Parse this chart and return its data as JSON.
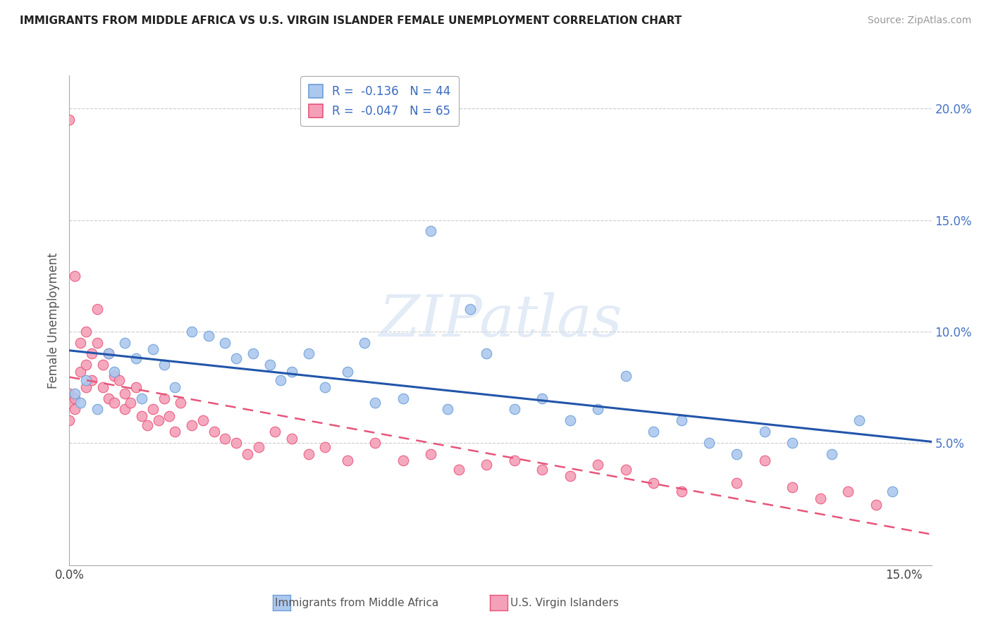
{
  "title": "IMMIGRANTS FROM MIDDLE AFRICA VS U.S. VIRGIN ISLANDER FEMALE UNEMPLOYMENT CORRELATION CHART",
  "source": "Source: ZipAtlas.com",
  "ylabel": "Female Unemployment",
  "xlim": [
    0.0,
    0.155
  ],
  "ylim": [
    -0.005,
    0.215
  ],
  "yticks": [
    0.05,
    0.1,
    0.15,
    0.2
  ],
  "ytick_labels": [
    "5.0%",
    "10.0%",
    "15.0%",
    "20.0%"
  ],
  "blue_label": "Immigrants from Middle Africa",
  "pink_label": "U.S. Virgin Islanders",
  "blue_R": "-0.136",
  "blue_N": "44",
  "pink_R": "-0.047",
  "pink_N": "65",
  "blue_color": "#adc8ee",
  "pink_color": "#f4a0b8",
  "blue_edge_color": "#6a9fd8",
  "pink_edge_color": "#e8547a",
  "blue_line_color": "#2255aa",
  "pink_line_color": "#e8547a",
  "watermark_text": "ZIPatlas",
  "blue_scatter_x": [
    0.001,
    0.002,
    0.003,
    0.005,
    0.007,
    0.008,
    0.01,
    0.012,
    0.013,
    0.015,
    0.017,
    0.019,
    0.022,
    0.025,
    0.028,
    0.03,
    0.033,
    0.036,
    0.038,
    0.04,
    0.043,
    0.046,
    0.05,
    0.053,
    0.055,
    0.06,
    0.065,
    0.068,
    0.072,
    0.075,
    0.08,
    0.085,
    0.09,
    0.095,
    0.1,
    0.105,
    0.11,
    0.115,
    0.12,
    0.125,
    0.13,
    0.137,
    0.142,
    0.148
  ],
  "blue_scatter_y": [
    0.072,
    0.068,
    0.078,
    0.065,
    0.09,
    0.082,
    0.095,
    0.088,
    0.07,
    0.092,
    0.085,
    0.075,
    0.1,
    0.098,
    0.095,
    0.088,
    0.09,
    0.085,
    0.078,
    0.082,
    0.09,
    0.075,
    0.082,
    0.095,
    0.068,
    0.07,
    0.145,
    0.065,
    0.11,
    0.09,
    0.065,
    0.07,
    0.06,
    0.065,
    0.08,
    0.055,
    0.06,
    0.05,
    0.045,
    0.055,
    0.05,
    0.045,
    0.06,
    0.028
  ],
  "pink_scatter_x": [
    0.0,
    0.0,
    0.0,
    0.0,
    0.001,
    0.001,
    0.001,
    0.002,
    0.002,
    0.003,
    0.003,
    0.003,
    0.004,
    0.004,
    0.005,
    0.005,
    0.006,
    0.006,
    0.007,
    0.007,
    0.008,
    0.008,
    0.009,
    0.01,
    0.01,
    0.011,
    0.012,
    0.013,
    0.014,
    0.015,
    0.016,
    0.017,
    0.018,
    0.019,
    0.02,
    0.022,
    0.024,
    0.026,
    0.028,
    0.03,
    0.032,
    0.034,
    0.037,
    0.04,
    0.043,
    0.046,
    0.05,
    0.055,
    0.06,
    0.065,
    0.07,
    0.075,
    0.08,
    0.085,
    0.09,
    0.095,
    0.1,
    0.105,
    0.11,
    0.12,
    0.125,
    0.13,
    0.135,
    0.14,
    0.145
  ],
  "pink_scatter_y": [
    0.068,
    0.072,
    0.06,
    0.195,
    0.125,
    0.07,
    0.065,
    0.082,
    0.095,
    0.085,
    0.075,
    0.1,
    0.09,
    0.078,
    0.11,
    0.095,
    0.085,
    0.075,
    0.09,
    0.07,
    0.08,
    0.068,
    0.078,
    0.072,
    0.065,
    0.068,
    0.075,
    0.062,
    0.058,
    0.065,
    0.06,
    0.07,
    0.062,
    0.055,
    0.068,
    0.058,
    0.06,
    0.055,
    0.052,
    0.05,
    0.045,
    0.048,
    0.055,
    0.052,
    0.045,
    0.048,
    0.042,
    0.05,
    0.042,
    0.045,
    0.038,
    0.04,
    0.042,
    0.038,
    0.035,
    0.04,
    0.038,
    0.032,
    0.028,
    0.032,
    0.042,
    0.03,
    0.025,
    0.028,
    0.022
  ]
}
